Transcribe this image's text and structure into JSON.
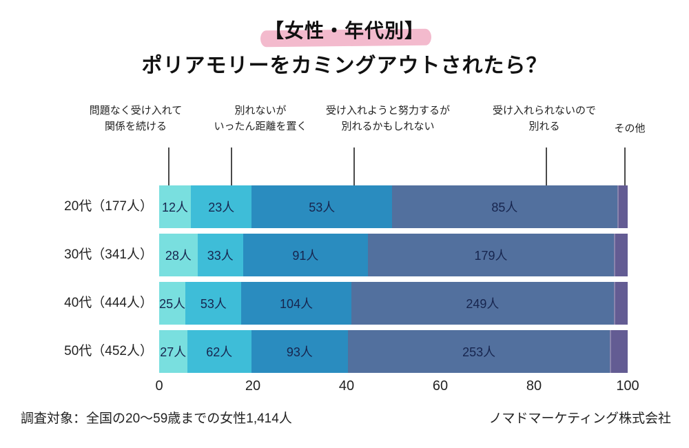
{
  "title": {
    "line1": "【女性・年代別】",
    "line2": "ポリアモリーをカミングアウトされたら？"
  },
  "colors": {
    "highlight": "#f3bacd",
    "value_text": "#17254e",
    "leader_line": "#4a4a4a"
  },
  "legend": {
    "items": [
      {
        "lines": [
          "問題なく受け入れて",
          "関係を続ける"
        ]
      },
      {
        "lines": [
          "別れないが",
          "いったん距離を置く"
        ]
      },
      {
        "lines": [
          "受け入れようと努力するが",
          "別れるかもしれない"
        ]
      },
      {
        "lines": [
          "受け入れられないので",
          "別れる"
        ]
      },
      {
        "lines": [
          "その他"
        ]
      }
    ]
  },
  "chart_data": {
    "type": "bar",
    "orientation": "horizontal",
    "stacked": true,
    "title": "【女性・年代別】ポリアモリーをカミングアウトされたら？",
    "categories": [
      "20代（177人）",
      "30代（341人）",
      "40代（444人）",
      "50代（452人）"
    ],
    "totals": [
      177,
      341,
      444,
      452
    ],
    "unit": "人",
    "series": [
      {
        "name": "問題なく受け入れて関係を続ける",
        "color": "#79dfdf",
        "values": [
          12,
          28,
          25,
          27
        ],
        "show_value_labels": true
      },
      {
        "name": "別れないがいったん距離を置く",
        "color": "#3ebdd8",
        "values": [
          23,
          33,
          53,
          62
        ],
        "show_value_labels": true
      },
      {
        "name": "受け入れようと努力するが別れるかもしれない",
        "color": "#2a8cbf",
        "values": [
          53,
          91,
          104,
          93
        ],
        "show_value_labels": true
      },
      {
        "name": "受け入れられないので別れる",
        "color": "#52709e",
        "values": [
          85,
          179,
          249,
          253
        ],
        "show_value_labels": true
      },
      {
        "name": "その他",
        "color": "#635c93",
        "values": [
          4,
          10,
          13,
          17
        ],
        "show_value_labels": false
      }
    ],
    "xticks": [
      0,
      20,
      40,
      60,
      80,
      100
    ],
    "xlim": [
      0,
      100
    ],
    "x_is_percent": true,
    "legend_position": "top-callouts",
    "grid": false
  },
  "footer": {
    "left": "調査対象：全国の20〜59歳までの女性1,414人",
    "right": "ノマドマーケティング株式会社"
  }
}
